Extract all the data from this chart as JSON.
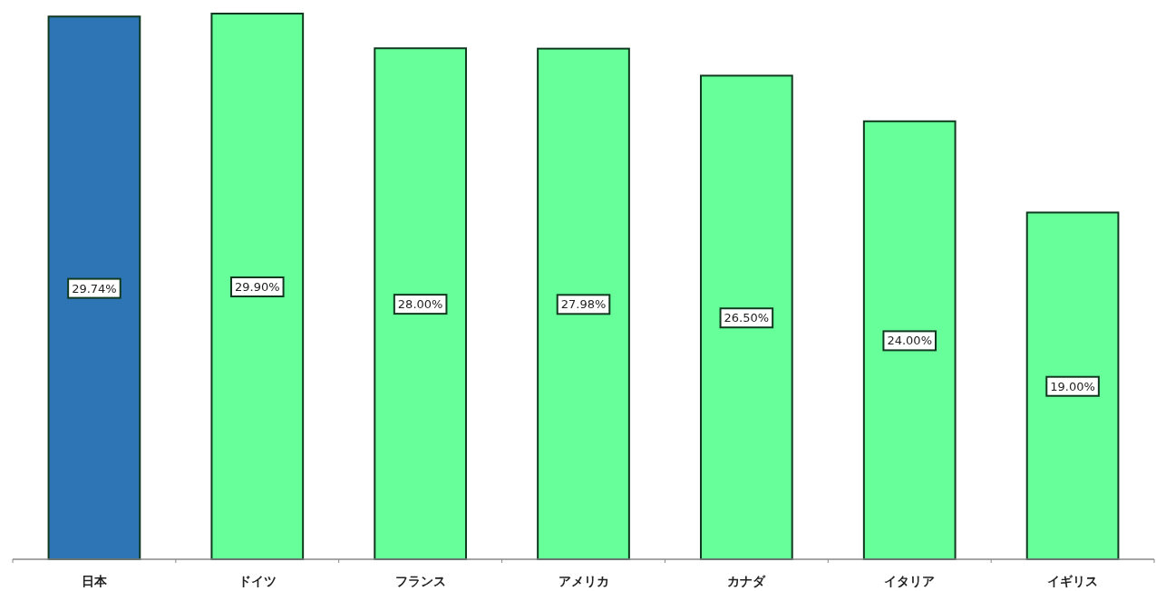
{
  "chart_data": {
    "type": "bar",
    "categories": [
      "日本",
      "ドイツ",
      "フランス",
      "アメリカ",
      "カナダ",
      "イタリア",
      "イギリス"
    ],
    "values": [
      29.74,
      29.9,
      28.0,
      27.98,
      26.5,
      24.0,
      19.0
    ],
    "value_labels": [
      "29.74%",
      "29.90%",
      "28.00%",
      "27.98%",
      "26.50%",
      "24.00%",
      "19.00%"
    ],
    "colors": [
      "#2e75b6",
      "#66ff99",
      "#66ff99",
      "#66ff99",
      "#66ff99",
      "#66ff99",
      "#66ff99"
    ]
  }
}
